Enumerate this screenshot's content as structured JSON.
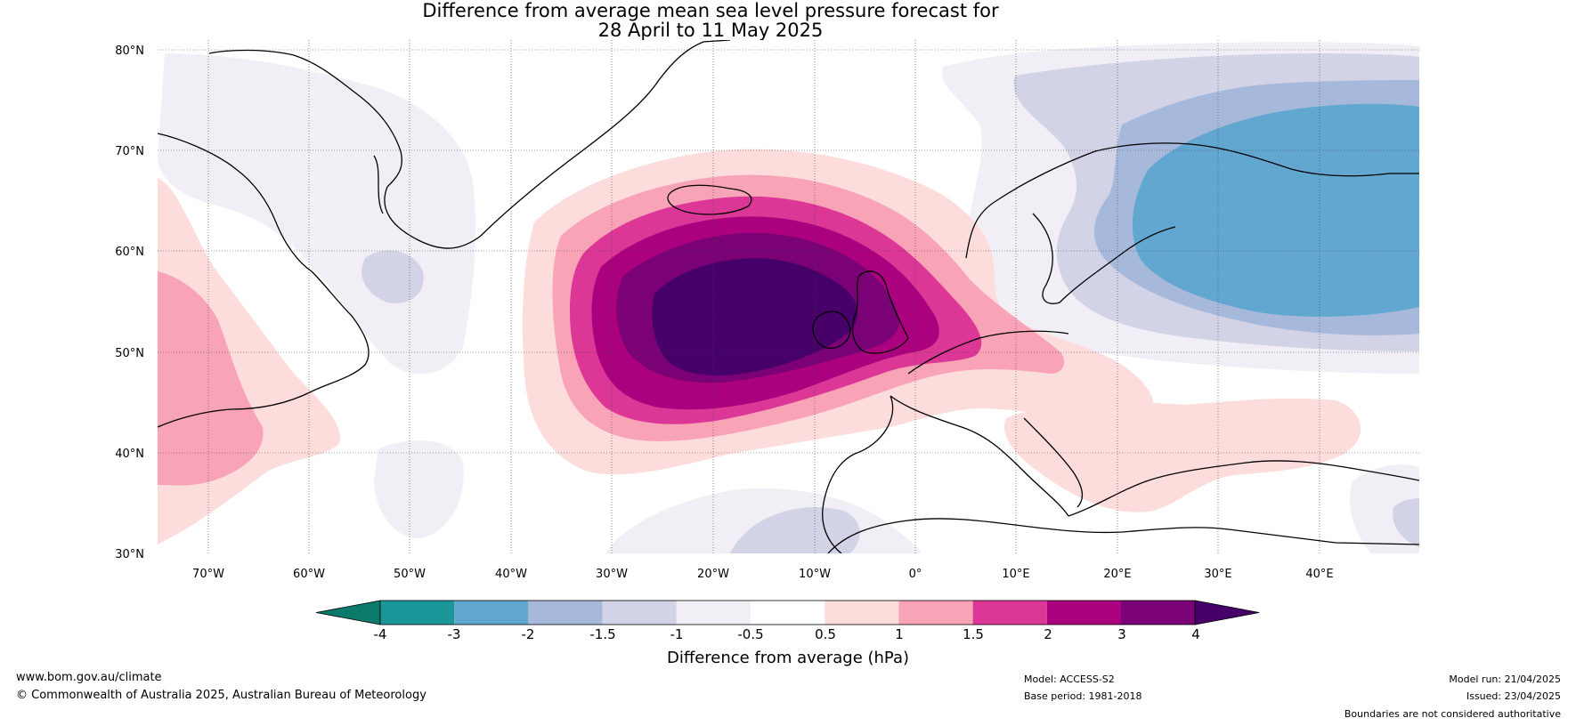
{
  "title": {
    "line1": "Difference from average mean sea level pressure forecast for",
    "line2": "28 April to 11 May 2025"
  },
  "map": {
    "lat_labels": [
      "80°N",
      "70°N",
      "60°N",
      "50°N",
      "40°N",
      "30°N"
    ],
    "lon_labels": [
      "70°W",
      "60°W",
      "50°W",
      "40°W",
      "30°W",
      "20°W",
      "10°W",
      "0°",
      "10°E",
      "20°E",
      "30°E",
      "40°E"
    ],
    "extent": {
      "lon": [
        -75,
        50
      ],
      "lat": [
        30,
        81
      ]
    }
  },
  "legend": {
    "label": "Difference from average (hPa)",
    "ticks": [
      "-4",
      "-3",
      "-2",
      "-1.5",
      "-1",
      "-0.5",
      "0.5",
      "1",
      "1.5",
      "2",
      "3",
      "4"
    ],
    "colors": [
      "#0a7a6a",
      "#1b9699",
      "#62a7cf",
      "#a7b9db",
      "#d2d3e6",
      "#f2eef5",
      "#ffffff",
      "#fddcdc",
      "#f9a3b6",
      "#dc3797",
      "#ab017e",
      "#7a0176",
      "#470069"
    ]
  },
  "footer": {
    "website": "www.bom.gov.au/climate",
    "copyright": "© Commonwealth of Australia 2025, Australian Bureau of Meteorology",
    "model": "Model: ACCESS-S2",
    "base_period": "Base period: 1981-2018",
    "model_run": "Model run: 21/04/2025",
    "issued": "Issued: 23/04/2025",
    "disclaimer": "Boundaries are not considered authoritative"
  }
}
